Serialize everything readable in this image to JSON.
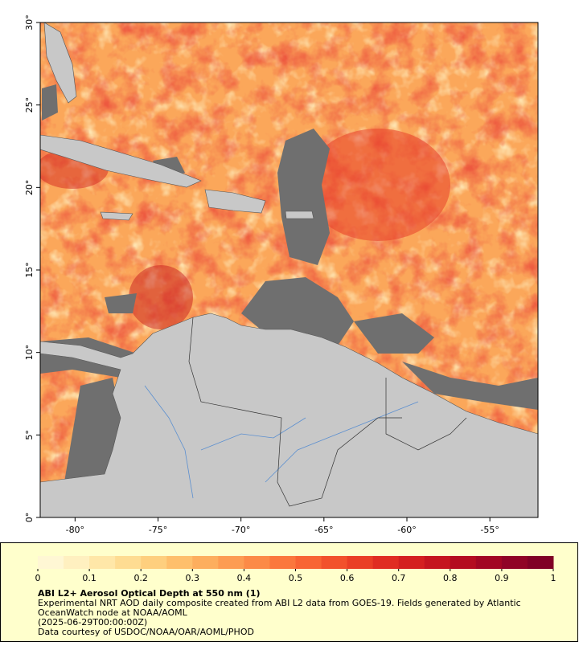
{
  "map": {
    "xlim": [
      -82.1,
      -52.1
    ],
    "ylim": [
      0,
      30
    ],
    "xticks": [
      {
        "value": -80,
        "label": "-80°"
      },
      {
        "value": -75,
        "label": "-75°"
      },
      {
        "value": -70,
        "label": "-70°"
      },
      {
        "value": -65,
        "label": "-65°"
      },
      {
        "value": -60,
        "label": "-60°"
      },
      {
        "value": -55,
        "label": "-55°"
      }
    ],
    "yticks": [
      {
        "value": 0,
        "label": "0°"
      },
      {
        "value": 5,
        "label": "5°"
      },
      {
        "value": 10,
        "label": "10°"
      },
      {
        "value": 15,
        "label": "15°"
      },
      {
        "value": 20,
        "label": "20°"
      },
      {
        "value": 25,
        "label": "25°"
      },
      {
        "value": 30,
        "label": "30°"
      }
    ]
  },
  "colorbar": {
    "lim": [
      0,
      1
    ],
    "ticks": [
      0,
      0.1,
      0.2,
      0.3,
      0.4,
      0.5,
      0.6,
      0.7,
      0.8,
      0.9,
      1
    ],
    "colors": [
      "#fff7d4",
      "#fff0c0",
      "#ffe7a8",
      "#fedc92",
      "#fecf7e",
      "#febf6c",
      "#fdae5e",
      "#fd9c52",
      "#fc8a47",
      "#fb773d",
      "#f86434",
      "#f2512c",
      "#ea3e26",
      "#e02c22",
      "#d41f20",
      "#c5141f",
      "#b40c20",
      "#a20623",
      "#900326",
      "#800026"
    ]
  },
  "caption": {
    "title": "ABI L2+ Aerosol Optical Depth at 550 nm (1)",
    "lines": [
      "Experimental NRT AOD daily composite created from ABI L2 data from GOES-19. Fields generated by Atlantic",
      "OceanWatch node at NOAA/AOML",
      "(2025-06-29T00:00:00Z)",
      "Data courtesy of USDOC/NOAA/OAR/AOML/PHOD"
    ]
  }
}
